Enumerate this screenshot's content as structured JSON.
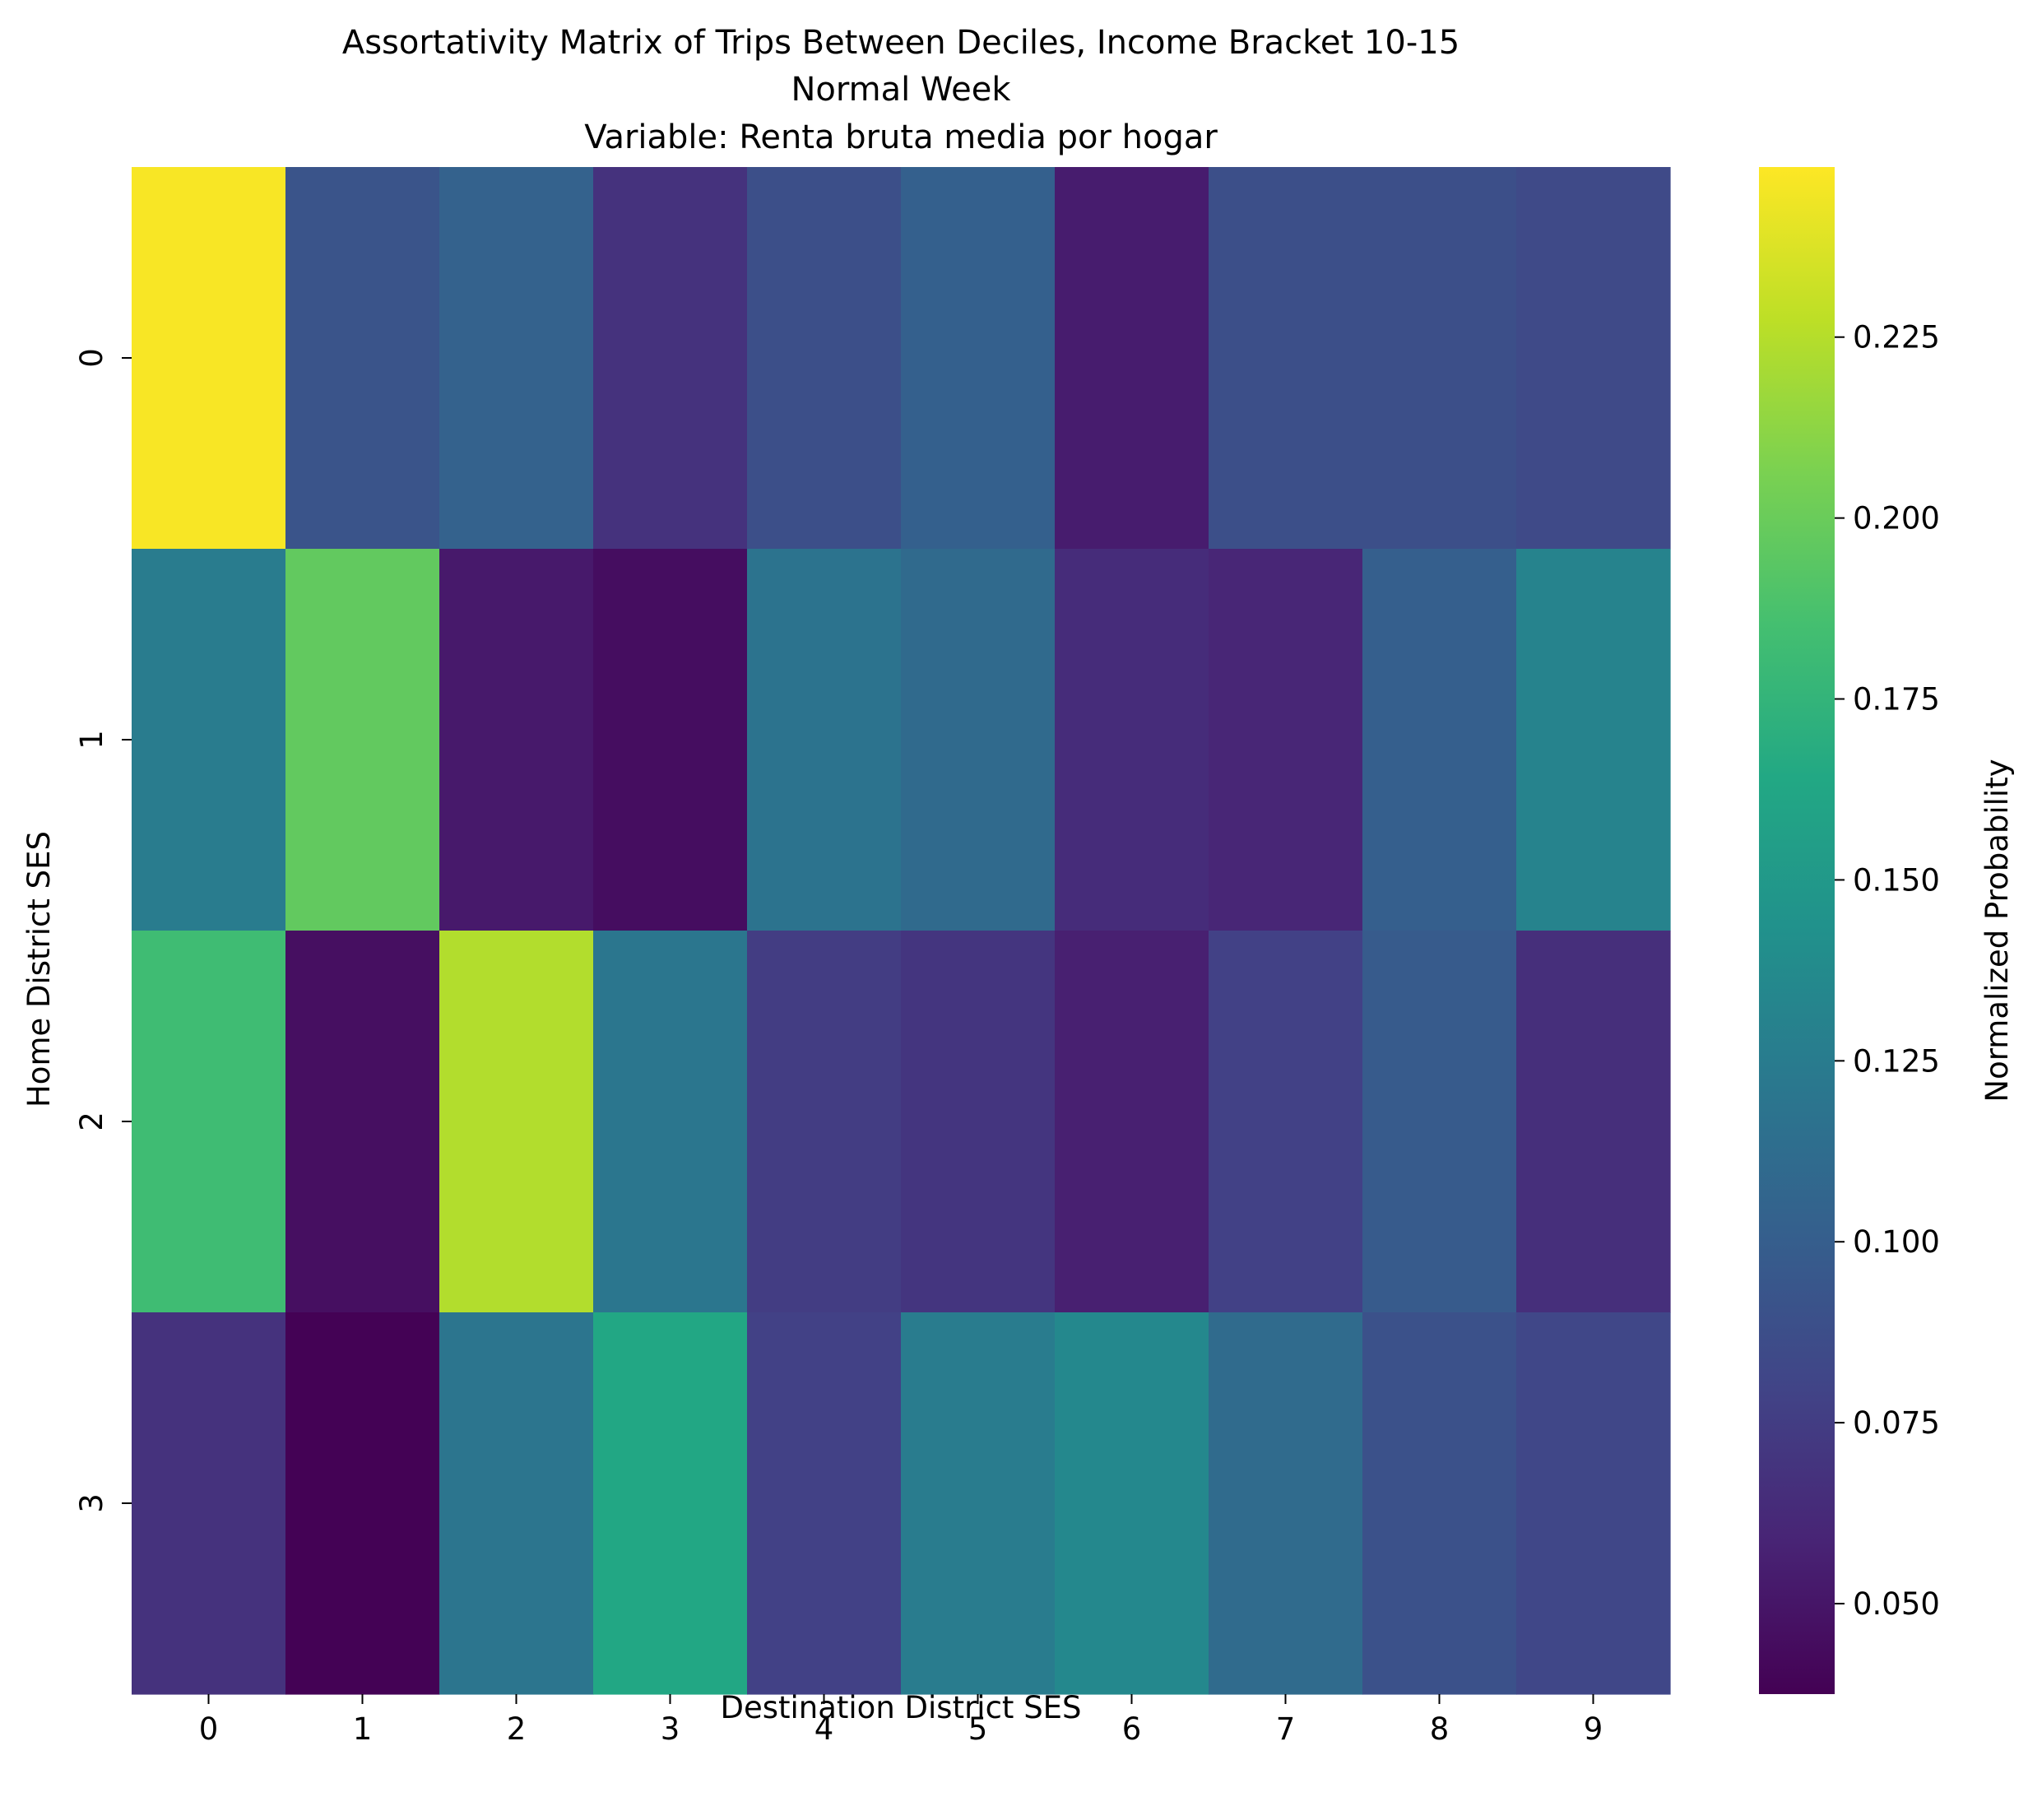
{
  "chart_data": {
    "type": "heatmap",
    "title_lines": [
      "Assortativity Matrix of Trips Between Deciles, Income Bracket 10-15",
      "Normal Week",
      "Variable: Renta bruta media por hogar"
    ],
    "xlabel": "Destination District SES",
    "ylabel": "Home District SES",
    "x_categories": [
      "0",
      "1",
      "2",
      "3",
      "4",
      "5",
      "6",
      "7",
      "8",
      "9"
    ],
    "y_categories": [
      "0",
      "1",
      "2",
      "3"
    ],
    "values": [
      [
        0.247,
        0.092,
        0.103,
        0.068,
        0.088,
        0.102,
        0.054,
        0.088,
        0.088,
        0.084
      ],
      [
        0.125,
        0.197,
        0.052,
        0.045,
        0.118,
        0.11,
        0.064,
        0.06,
        0.101,
        0.131
      ],
      [
        0.182,
        0.046,
        0.224,
        0.12,
        0.075,
        0.07,
        0.056,
        0.078,
        0.098,
        0.066
      ],
      [
        0.068,
        0.038,
        0.119,
        0.163,
        0.078,
        0.125,
        0.135,
        0.111,
        0.09,
        0.082
      ]
    ],
    "colorbar": {
      "label": "Normalized Probability",
      "min": 0.0375,
      "max": 0.2485,
      "ticks": [
        "0.050",
        "0.075",
        "0.100",
        "0.125",
        "0.150",
        "0.175",
        "0.200",
        "0.225"
      ],
      "colormap": "viridis"
    },
    "grid": false,
    "legend": "colorbar-right"
  }
}
